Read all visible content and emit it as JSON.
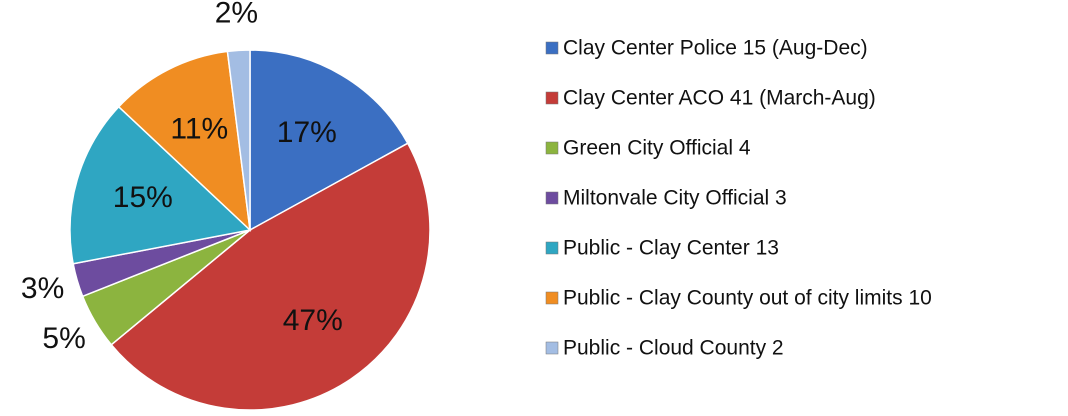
{
  "chart_data": {
    "type": "pie",
    "categories": [
      "Clay Center Police 15  (Aug-Dec)",
      "Clay Center ACO 41 (March-Aug)",
      "Green City Official 4",
      "Miltonvale City Official 3",
      "Public - Clay Center 13",
      "Public - Clay County out of city limits 10",
      "Public - Cloud County 2"
    ],
    "values": [
      17,
      47,
      5,
      3,
      15,
      11,
      2
    ],
    "value_labels": [
      "17%",
      "47%",
      "5%",
      "3%",
      "15%",
      "11%",
      "2%"
    ],
    "colors": [
      "#3b6fc2",
      "#c43c38",
      "#8cb43f",
      "#6d4c9f",
      "#2fa6c2",
      "#f08d22",
      "#a3bde3"
    ],
    "legend": "right"
  }
}
